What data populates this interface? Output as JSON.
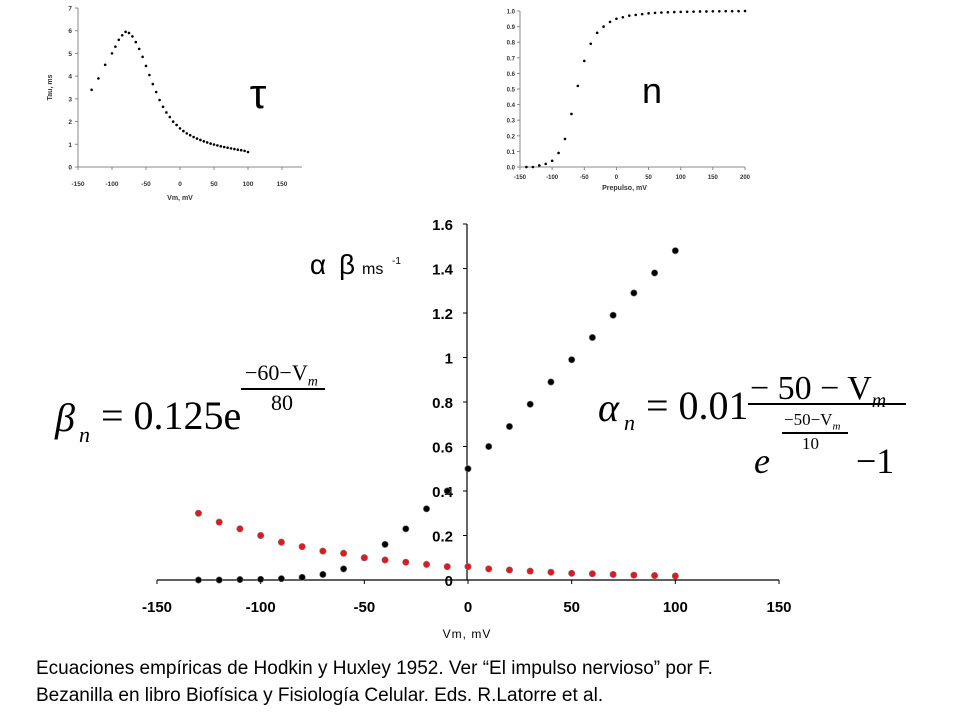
{
  "chart_data": [
    {
      "type": "scatter",
      "ylabel": "Tau, ms",
      "xlabel": "Vm, mV",
      "xlim": [
        -150,
        150
      ],
      "ylim": [
        0,
        7
      ],
      "xticks": [
        "-150",
        "-100",
        "-50",
        "0",
        "50",
        "100",
        "150"
      ],
      "yticks": [
        "0",
        "1",
        "2",
        "3",
        "4",
        "5",
        "6",
        "7"
      ],
      "annotation": "τ",
      "series": [
        {
          "x": [
            -130,
            -120,
            -110,
            -100,
            -95,
            -90,
            -85,
            -80,
            -75,
            -70,
            -65,
            -60,
            -55,
            -50,
            -45,
            -40,
            -35,
            -30,
            -25,
            -20,
            -15,
            -10,
            -5,
            0,
            5,
            10,
            15,
            20,
            25,
            30,
            35,
            40,
            45,
            50,
            55,
            60,
            65,
            70,
            75,
            80,
            85,
            90,
            95,
            100
          ],
          "y": [
            3.4,
            3.9,
            4.5,
            5.0,
            5.3,
            5.6,
            5.8,
            5.95,
            5.9,
            5.75,
            5.5,
            5.2,
            4.85,
            4.45,
            4.05,
            3.65,
            3.3,
            2.95,
            2.65,
            2.4,
            2.2,
            2.0,
            1.85,
            1.7,
            1.58,
            1.48,
            1.4,
            1.32,
            1.25,
            1.19,
            1.13,
            1.08,
            1.03,
            0.99,
            0.95,
            0.91,
            0.88,
            0.85,
            0.82,
            0.79,
            0.76,
            0.74,
            0.71,
            0.66
          ],
          "color": "#000000"
        }
      ]
    },
    {
      "type": "scatter",
      "xlabel": "Prepulso, mV",
      "xlim": [
        -150,
        200
      ],
      "ylim": [
        0,
        1.0
      ],
      "xticks": [
        "-150",
        "-100",
        "-50",
        "0",
        "50",
        "100",
        "150",
        "200"
      ],
      "yticks": [
        "0.0",
        "0.1",
        "0.2",
        "0.3",
        "0.4",
        "0.5",
        "0.6",
        "0.7",
        "0.8",
        "0.9",
        "1.0"
      ],
      "annotation": "n",
      "series": [
        {
          "x": [
            -140,
            -130,
            -120,
            -110,
            -100,
            -90,
            -80,
            -70,
            -60,
            -50,
            -40,
            -30,
            -20,
            -10,
            0,
            10,
            20,
            30,
            40,
            50,
            60,
            70,
            80,
            90,
            100,
            110,
            120,
            130,
            140,
            150,
            160,
            170,
            180,
            190,
            200
          ],
          "y": [
            0.0,
            0.0,
            0.01,
            0.02,
            0.04,
            0.09,
            0.18,
            0.34,
            0.52,
            0.68,
            0.79,
            0.86,
            0.9,
            0.93,
            0.95,
            0.96,
            0.97,
            0.975,
            0.98,
            0.985,
            0.988,
            0.99,
            0.992,
            0.993,
            0.994,
            0.995,
            0.996,
            0.997,
            0.997,
            0.998,
            0.998,
            0.999,
            0.999,
            0.999,
            1.0
          ],
          "color": "#000000"
        }
      ]
    },
    {
      "type": "scatter",
      "xlabel": "Vm, mV",
      "ylabel_alpha": "α",
      "ylabel_beta": "β",
      "ylabel_unit": "ms",
      "ylabel_exp": "-1",
      "xlim": [
        -150,
        150
      ],
      "ylim": [
        0,
        1.6
      ],
      "xticks": [
        "-150",
        "-100",
        "-50",
        "0",
        "50",
        "100",
        "150"
      ],
      "yticks": [
        "0",
        "0.2",
        "0.4",
        "0.6",
        "0.8",
        "1",
        "1.2",
        "1.4",
        "1.6"
      ],
      "series": [
        {
          "name": "α",
          "color": "#000000",
          "x": [
            -130,
            -120,
            -110,
            -100,
            -90,
            -80,
            -70,
            -60,
            -50,
            -40,
            -30,
            -20,
            -10,
            0,
            10,
            20,
            30,
            40,
            50,
            60,
            70,
            80,
            90,
            100
          ],
          "y": [
            0.0,
            0.0,
            0.002,
            0.003,
            0.006,
            0.012,
            0.025,
            0.05,
            0.1,
            0.16,
            0.23,
            0.32,
            0.4,
            0.5,
            0.6,
            0.69,
            0.79,
            0.89,
            0.99,
            1.09,
            1.19,
            1.29,
            1.38,
            1.48
          ]
        },
        {
          "name": "β",
          "color": "#e8161c",
          "x": [
            -130,
            -120,
            -110,
            -100,
            -90,
            -80,
            -70,
            -60,
            -50,
            -40,
            -30,
            -20,
            -10,
            0,
            10,
            20,
            30,
            40,
            50,
            60,
            70,
            80,
            90,
            100
          ],
          "y": [
            0.3,
            0.26,
            0.23,
            0.2,
            0.17,
            0.15,
            0.13,
            0.12,
            0.1,
            0.09,
            0.08,
            0.07,
            0.06,
            0.06,
            0.05,
            0.045,
            0.04,
            0.035,
            0.03,
            0.028,
            0.025,
            0.022,
            0.02,
            0.018
          ]
        }
      ]
    }
  ],
  "equations": {
    "beta_lhs": "β",
    "beta_sub": "n",
    "beta_rhs": "= 0.125e",
    "beta_exp_num": "−60−V",
    "beta_exp_num_sub": "m",
    "beta_exp_den": "80",
    "alpha_lhs": "α",
    "alpha_sub": "n",
    "alpha_rhs": "= 0.01",
    "alpha_num": "− 50 − V",
    "alpha_num_sub": "m",
    "alpha_den_e": "e",
    "alpha_den_exp_num": "−50−V",
    "alpha_den_exp_num_sub": "m",
    "alpha_den_exp_den": "10",
    "alpha_den_minus": "−1"
  },
  "caption": {
    "line1": "Ecuaciones empíricas de Hodkin y Huxley 1952. Ver “El impulso nervioso” por F.",
    "line2": "Bezanilla en libro Biofísica y Fisiología Celular. Eds. R.Latorre et al."
  }
}
